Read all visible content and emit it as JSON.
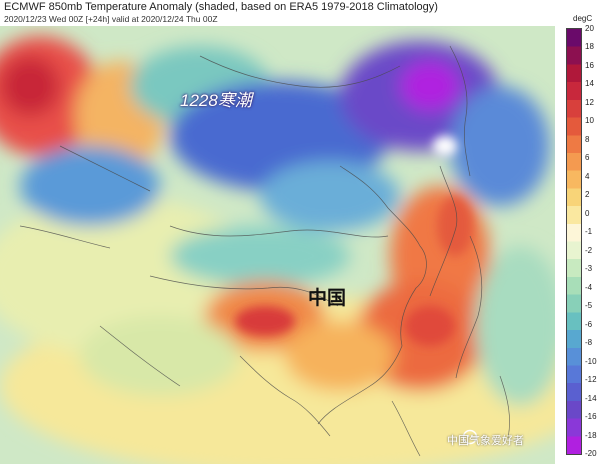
{
  "header": {
    "title": "ECMWF 850mb Temperature Anomaly (shaded, based on ERA5 1979-2018 Climatology)",
    "subtitle": "2020/12/23 Wed 00Z [+24h] valid at 2020/12/24 Thu 00Z"
  },
  "annotations": {
    "cold_wave": "1228寒潮",
    "country": "中国"
  },
  "watermark": "中国气象爱好者",
  "colorbar": {
    "unit": "degC",
    "ticks": [
      "20",
      "18",
      "16",
      "14",
      "12",
      "10",
      "8",
      "6",
      "4",
      "2",
      "0",
      "-1",
      "-2",
      "-3",
      "-4",
      "-5",
      "-6",
      "-8",
      "-10",
      "-12",
      "-14",
      "-16",
      "-18",
      "-20"
    ],
    "colors": [
      "#6a0a6a",
      "#8c1050",
      "#b0183a",
      "#c8283c",
      "#d8403c",
      "#e45a3c",
      "#ee7a44",
      "#f49a50",
      "#f8b860",
      "#f8d478",
      "#fae8a0",
      "#fdf6d8",
      "#e8f4d0",
      "#c8eac0",
      "#a8deb8",
      "#88d0b8",
      "#68c0c0",
      "#58a8d0",
      "#5890d8",
      "#5878d8",
      "#5a60d0",
      "#6a48c8",
      "#8a38d8",
      "#b020e0"
    ],
    "icons": [
      "watermark-logo-icon"
    ]
  }
}
